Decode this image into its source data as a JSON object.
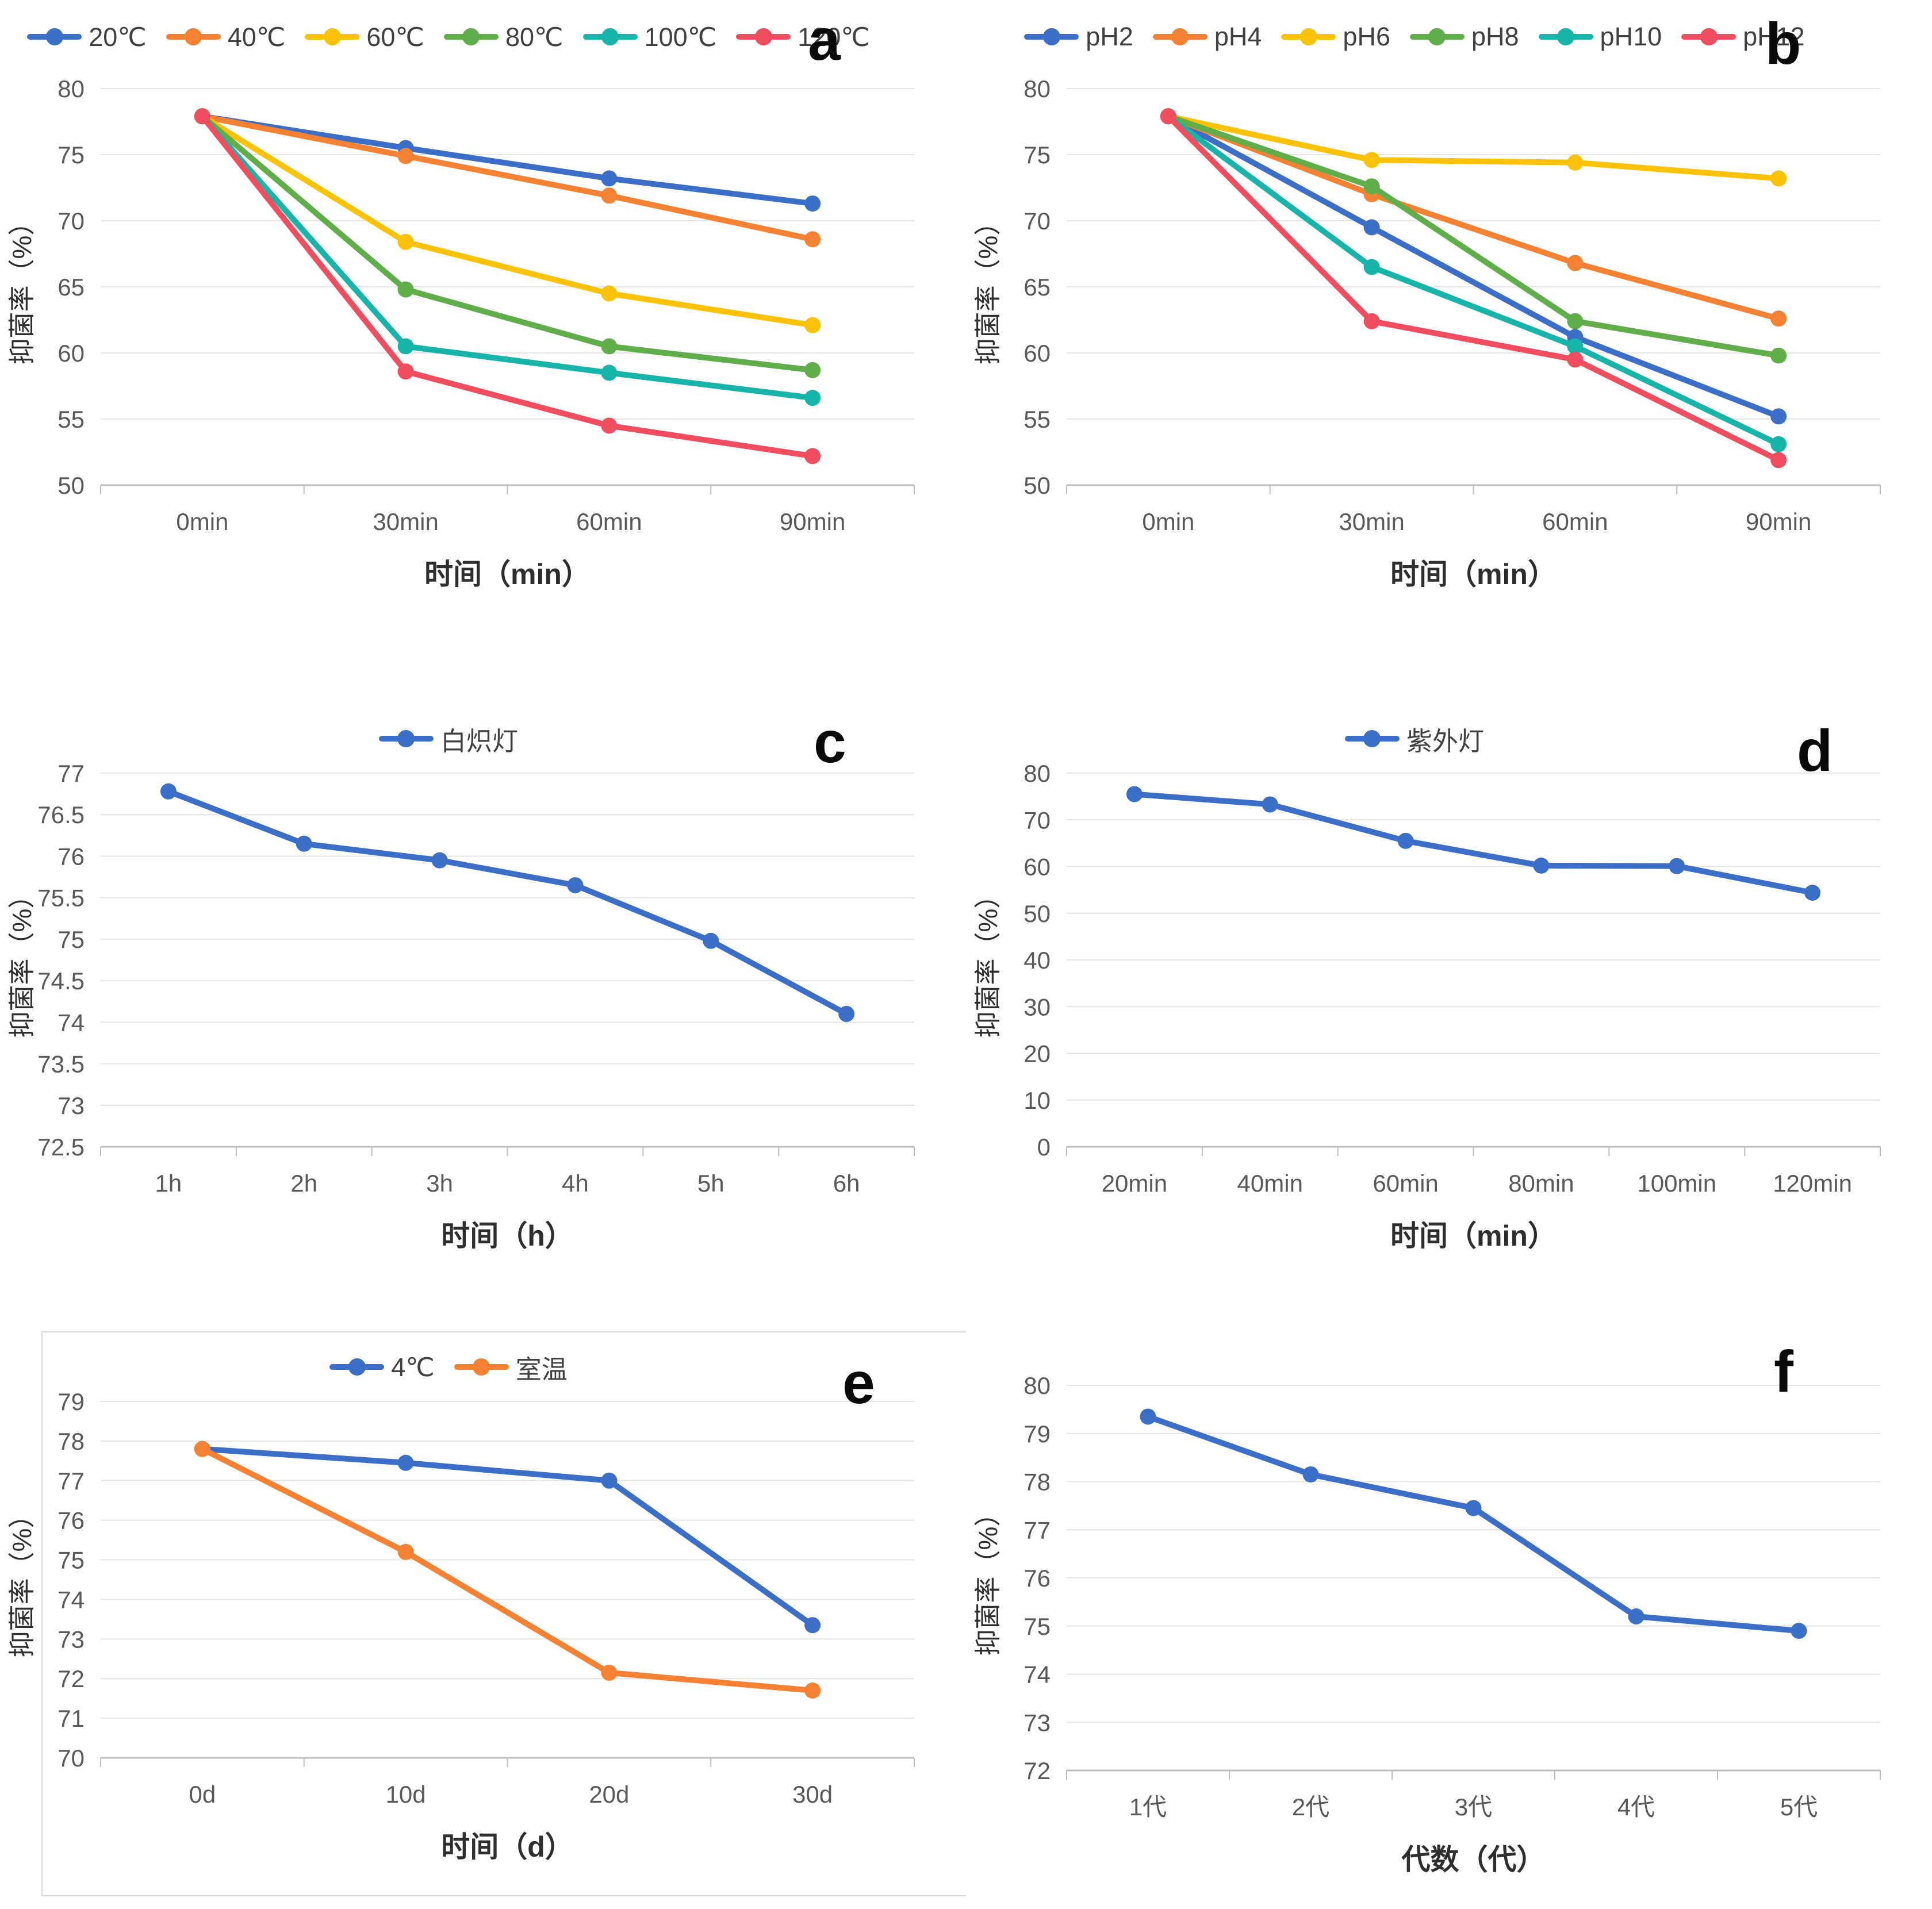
{
  "chart_data": [
    {
      "panel_label": "a",
      "type": "line",
      "ylabel": "抑菌率（%）",
      "xlabel": "时间（min）",
      "categories": [
        "0min",
        "30min",
        "60min",
        "90min"
      ],
      "ylim": [
        50,
        80
      ],
      "ytick_step": 5,
      "grid": true,
      "legend_position": "top",
      "series": [
        {
          "name": "20℃",
          "color": "#3b6fc7",
          "values": [
            77.9,
            75.5,
            73.2,
            71.3
          ]
        },
        {
          "name": "40℃",
          "color": "#f58233",
          "values": [
            77.9,
            74.9,
            71.9,
            68.6
          ]
        },
        {
          "name": "60℃",
          "color": "#fcc306",
          "values": [
            77.9,
            68.4,
            64.5,
            62.1
          ]
        },
        {
          "name": "80℃",
          "color": "#5fae49",
          "values": [
            77.9,
            64.8,
            60.5,
            58.7
          ]
        },
        {
          "name": "100℃",
          "color": "#17b5a9",
          "values": [
            77.9,
            60.5,
            58.5,
            56.6
          ]
        },
        {
          "name": "120℃",
          "color": "#f04e5e",
          "values": [
            77.9,
            58.6,
            54.5,
            52.2
          ]
        }
      ]
    },
    {
      "panel_label": "b",
      "type": "line",
      "ylabel": "抑菌率（%）",
      "xlabel": "时间（min）",
      "categories": [
        "0min",
        "30min",
        "60min",
        "90min"
      ],
      "ylim": [
        50,
        80
      ],
      "ytick_step": 5,
      "grid": true,
      "legend_position": "top",
      "series": [
        {
          "name": "pH2",
          "color": "#3b6fc7",
          "values": [
            77.9,
            69.5,
            61.2,
            55.2
          ]
        },
        {
          "name": "pH4",
          "color": "#f58233",
          "values": [
            77.9,
            72.0,
            66.8,
            62.6
          ]
        },
        {
          "name": "pH6",
          "color": "#fcc306",
          "values": [
            77.9,
            74.6,
            74.4,
            73.2
          ]
        },
        {
          "name": "pH8",
          "color": "#5fae49",
          "values": [
            77.9,
            72.6,
            62.4,
            59.8
          ]
        },
        {
          "name": "pH10",
          "color": "#17b5a9",
          "values": [
            77.9,
            66.5,
            60.5,
            53.1
          ]
        },
        {
          "name": "pH12",
          "color": "#f04e5e",
          "values": [
            77.9,
            62.4,
            59.5,
            51.9
          ]
        }
      ]
    },
    {
      "panel_label": "c",
      "type": "line",
      "ylabel": "抑菌率（%）",
      "xlabel": "时间（h）",
      "categories": [
        "1h",
        "2h",
        "3h",
        "4h",
        "5h",
        "6h"
      ],
      "ylim": [
        72.5,
        77
      ],
      "ytick_step": 0.5,
      "grid": true,
      "legend_position": "top",
      "series": [
        {
          "name": "白炽灯",
          "color": "#3b6fc7",
          "values": [
            76.78,
            76.15,
            75.95,
            75.65,
            74.98,
            74.1
          ]
        }
      ]
    },
    {
      "panel_label": "d",
      "type": "line",
      "ylabel": "抑菌率（%）",
      "xlabel": "时间（min）",
      "categories": [
        "20min",
        "40min",
        "60min",
        "80min",
        "100min",
        "120min"
      ],
      "ylim": [
        0,
        80
      ],
      "ytick_step": 10,
      "grid": true,
      "legend_position": "top",
      "series": [
        {
          "name": "紫外灯",
          "color": "#3b6fc7",
          "values": [
            75.5,
            73.3,
            65.5,
            60.2,
            60.1,
            54.4
          ]
        }
      ]
    },
    {
      "panel_label": "e",
      "type": "line",
      "ylabel": "抑菌率（%）",
      "xlabel": "时间（d）",
      "categories": [
        "0d",
        "10d",
        "20d",
        "30d"
      ],
      "ylim": [
        70,
        79
      ],
      "ytick_step": 1,
      "grid": true,
      "legend_position": "top",
      "series": [
        {
          "name": "4℃",
          "color": "#3b6fc7",
          "values": [
            77.8,
            77.45,
            77.0,
            73.35
          ]
        },
        {
          "name": "室温",
          "color": "#f58233",
          "values": [
            77.8,
            75.2,
            72.15,
            71.7
          ]
        }
      ]
    },
    {
      "panel_label": "f",
      "type": "line",
      "ylabel": "抑菌率（%）",
      "xlabel": "代数（代）",
      "categories": [
        "1代",
        "2代",
        "3代",
        "4代",
        "5代"
      ],
      "ylim": [
        72,
        80
      ],
      "ytick_step": 1,
      "grid": true,
      "legend_position": "none",
      "series": [
        {
          "name": "",
          "color": "#3b6fc7",
          "values": [
            79.35,
            78.15,
            77.45,
            75.2,
            74.9
          ]
        }
      ]
    }
  ]
}
